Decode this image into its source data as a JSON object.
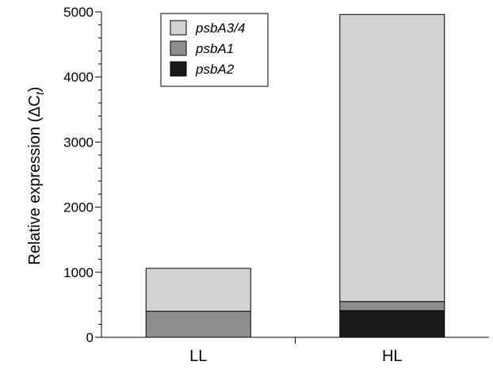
{
  "chart_data": {
    "type": "bar",
    "stacked": true,
    "categories": [
      "LL",
      "HL"
    ],
    "series": [
      {
        "name": "psbA2",
        "color": "#1a1a1a",
        "values": [
          0,
          410
        ]
      },
      {
        "name": "psbA1",
        "color": "#8e8e8e",
        "values": [
          400,
          140
        ]
      },
      {
        "name": "psbA3/4",
        "color": "#d2d2d2",
        "values": [
          660,
          4410
        ]
      }
    ],
    "legend_order": [
      "psbA3/4",
      "psbA1",
      "psbA2"
    ],
    "legend_position": "top-center",
    "yticks": [
      "0",
      "1000",
      "2000",
      "3000",
      "4000",
      "5000"
    ],
    "ylim": [
      0,
      5000
    ],
    "ylabel": "Relative expression (ΔC",
    "ylabel_sub": "t",
    "ylabel_close": ")",
    "grid": false
  }
}
